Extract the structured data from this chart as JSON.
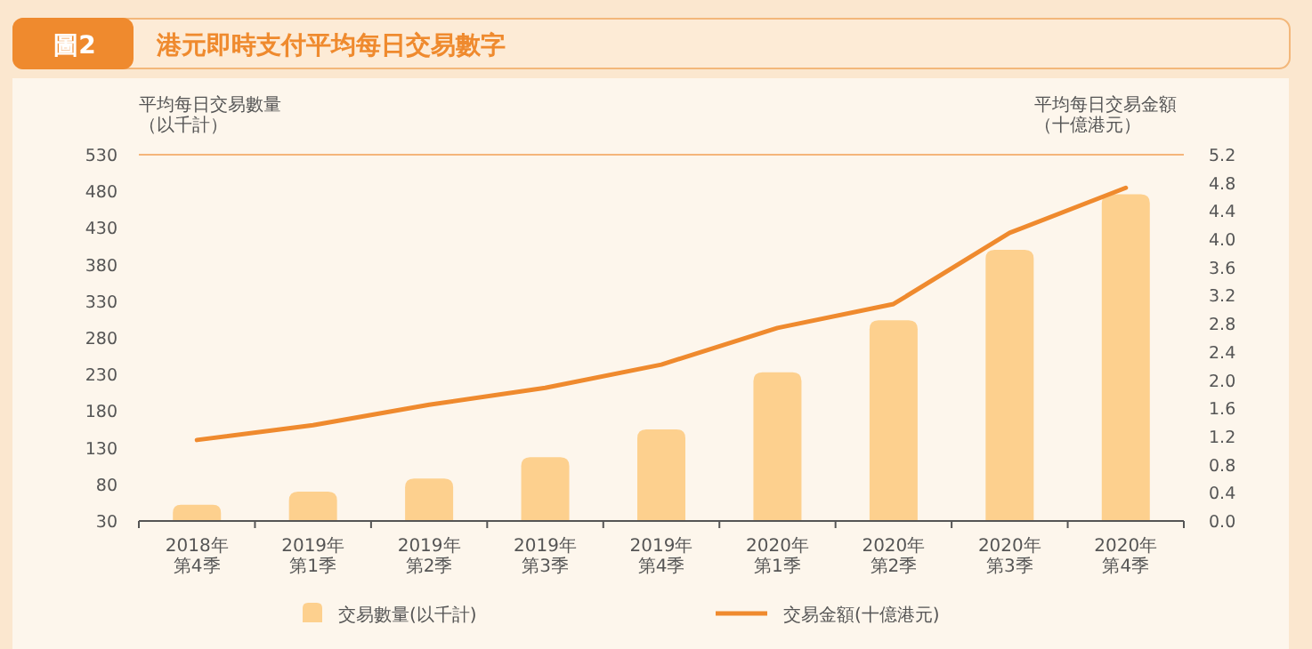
{
  "chart_data": {
    "type": "bar",
    "title": "港元即時支付平均每日交易數字",
    "annotations": [
      "圖2"
    ],
    "ylabel": "平均每日交易數量（以千計）",
    "y2label": "平均每日交易金額（十億港元）",
    "categories": [
      "2018年第4季",
      "2019年第1季",
      "2019年第2季",
      "2019年第3季",
      "2019年第4季",
      "2020年第1季",
      "2020年第2季",
      "2020年第3季",
      "2020年第4季"
    ],
    "series": [
      {
        "name": "交易數量(以千計)",
        "color": "#fdd08e",
        "values": [
          52,
          70,
          88,
          117,
          155,
          233,
          304,
          400,
          476
        ]
      },
      {
        "name": "交易金額(十億港元)",
        "type": "line",
        "axis": "y2",
        "color": "#ef8a2e",
        "values": [
          1.15,
          1.36,
          1.65,
          1.89,
          2.22,
          2.74,
          3.08,
          4.09,
          4.73
        ]
      }
    ],
    "ylim": [
      30,
      530
    ],
    "yticks": [
      30,
      80,
      130,
      180,
      230,
      280,
      330,
      380,
      430,
      480,
      530
    ],
    "y2lim": [
      0,
      5.2
    ],
    "y2ticks": [
      {
        "value": 0,
        "label": "0.0"
      },
      {
        "value": 0.4,
        "label": "0.4"
      },
      {
        "value": 0.8,
        "label": "0.8"
      },
      {
        "value": 1.2,
        "label": "1.2"
      },
      {
        "value": 1.6,
        "label": "1.6"
      },
      {
        "value": 2,
        "label": "2.0"
      },
      {
        "value": 2.4,
        "label": "2.4"
      },
      {
        "value": 2.8,
        "label": "2.8"
      },
      {
        "value": 3.2,
        "label": "3.2"
      },
      {
        "value": 3.6,
        "label": "3.6"
      },
      {
        "value": 4,
        "label": "4.0"
      },
      {
        "value": 4.4,
        "label": "4.4"
      },
      {
        "value": 4.8,
        "label": "4.8"
      },
      {
        "value": 5.2,
        "label": "5.2"
      }
    ],
    "grid": false,
    "legend": "bottom"
  }
}
